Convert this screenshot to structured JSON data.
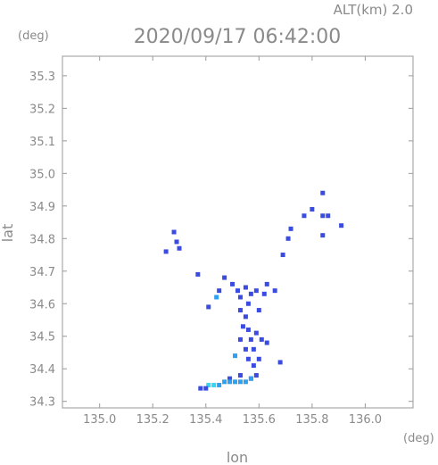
{
  "header": {
    "alt_label": "ALT(km)  2.0",
    "datetime": "2020/09/17 06:42:00"
  },
  "chart_data": {
    "type": "scatter",
    "title": "2020/09/17 06:42:00",
    "subtitle": "ALT(km)  2.0",
    "xlabel": "lon",
    "ylabel": "lat",
    "x_unit": "(deg)",
    "y_unit": "(deg)",
    "xlim": [
      134.86,
      136.18
    ],
    "ylim": [
      34.28,
      35.36
    ],
    "xticks": [
      135.0,
      135.2,
      135.4,
      135.6,
      135.8,
      136.0
    ],
    "xtick_labels": [
      "135.0",
      "135.2",
      "135.4",
      "135.6",
      "135.8",
      "136.0"
    ],
    "yticks": [
      34.3,
      34.4,
      34.5,
      34.6,
      34.7,
      34.8,
      34.9,
      35.0,
      35.1,
      35.2,
      35.3
    ],
    "ytick_labels": [
      "34.3",
      "34.4",
      "34.5",
      "34.6",
      "34.7",
      "34.8",
      "34.9",
      "35.0",
      "35.1",
      "35.2",
      "35.3"
    ],
    "grid": false,
    "colors": {
      "weak": "#3a4ce0",
      "moderate": "#2f9ff0",
      "strong": "#37d6f2"
    },
    "points": [
      {
        "x": 135.28,
        "y": 34.82,
        "level": "weak"
      },
      {
        "x": 135.29,
        "y": 34.79,
        "level": "weak"
      },
      {
        "x": 135.25,
        "y": 34.76,
        "level": "weak"
      },
      {
        "x": 135.3,
        "y": 34.77,
        "level": "weak"
      },
      {
        "x": 135.45,
        "y": 34.64,
        "level": "weak"
      },
      {
        "x": 135.44,
        "y": 34.62,
        "level": "moderate"
      },
      {
        "x": 135.37,
        "y": 34.69,
        "level": "weak"
      },
      {
        "x": 135.47,
        "y": 34.68,
        "level": "weak"
      },
      {
        "x": 135.41,
        "y": 34.59,
        "level": "weak"
      },
      {
        "x": 135.5,
        "y": 34.66,
        "level": "weak"
      },
      {
        "x": 135.52,
        "y": 34.64,
        "level": "weak"
      },
      {
        "x": 135.55,
        "y": 34.65,
        "level": "weak"
      },
      {
        "x": 135.53,
        "y": 34.62,
        "level": "weak"
      },
      {
        "x": 135.56,
        "y": 34.6,
        "level": "weak"
      },
      {
        "x": 135.53,
        "y": 34.58,
        "level": "weak"
      },
      {
        "x": 135.55,
        "y": 34.56,
        "level": "weak"
      },
      {
        "x": 135.57,
        "y": 34.63,
        "level": "weak"
      },
      {
        "x": 135.59,
        "y": 34.64,
        "level": "weak"
      },
      {
        "x": 135.62,
        "y": 34.63,
        "level": "weak"
      },
      {
        "x": 135.6,
        "y": 34.58,
        "level": "weak"
      },
      {
        "x": 135.63,
        "y": 34.66,
        "level": "weak"
      },
      {
        "x": 135.66,
        "y": 34.64,
        "level": "weak"
      },
      {
        "x": 135.54,
        "y": 34.53,
        "level": "weak"
      },
      {
        "x": 135.56,
        "y": 34.52,
        "level": "weak"
      },
      {
        "x": 135.53,
        "y": 34.49,
        "level": "weak"
      },
      {
        "x": 135.57,
        "y": 34.49,
        "level": "weak"
      },
      {
        "x": 135.59,
        "y": 34.51,
        "level": "weak"
      },
      {
        "x": 135.61,
        "y": 34.49,
        "level": "weak"
      },
      {
        "x": 135.63,
        "y": 34.48,
        "level": "weak"
      },
      {
        "x": 135.55,
        "y": 34.46,
        "level": "weak"
      },
      {
        "x": 135.58,
        "y": 34.46,
        "level": "weak"
      },
      {
        "x": 135.56,
        "y": 34.43,
        "level": "weak"
      },
      {
        "x": 135.58,
        "y": 34.41,
        "level": "weak"
      },
      {
        "x": 135.6,
        "y": 34.43,
        "level": "weak"
      },
      {
        "x": 135.68,
        "y": 34.42,
        "level": "weak"
      },
      {
        "x": 135.51,
        "y": 34.44,
        "level": "moderate"
      },
      {
        "x": 135.53,
        "y": 34.38,
        "level": "weak"
      },
      {
        "x": 135.49,
        "y": 34.37,
        "level": "weak"
      },
      {
        "x": 135.57,
        "y": 34.37,
        "level": "weak"
      },
      {
        "x": 135.59,
        "y": 34.38,
        "level": "weak"
      },
      {
        "x": 135.41,
        "y": 34.35,
        "level": "strong"
      },
      {
        "x": 135.43,
        "y": 34.35,
        "level": "strong"
      },
      {
        "x": 135.45,
        "y": 34.35,
        "level": "moderate"
      },
      {
        "x": 135.47,
        "y": 34.36,
        "level": "moderate"
      },
      {
        "x": 135.49,
        "y": 34.36,
        "level": "moderate"
      },
      {
        "x": 135.51,
        "y": 34.36,
        "level": "moderate"
      },
      {
        "x": 135.53,
        "y": 34.36,
        "level": "moderate"
      },
      {
        "x": 135.55,
        "y": 34.36,
        "level": "moderate"
      },
      {
        "x": 135.57,
        "y": 34.37,
        "level": "moderate"
      },
      {
        "x": 135.38,
        "y": 34.34,
        "level": "weak"
      },
      {
        "x": 135.4,
        "y": 34.34,
        "level": "weak"
      },
      {
        "x": 135.77,
        "y": 34.87,
        "level": "weak"
      },
      {
        "x": 135.8,
        "y": 34.89,
        "level": "weak"
      },
      {
        "x": 135.84,
        "y": 34.87,
        "level": "weak"
      },
      {
        "x": 135.84,
        "y": 34.94,
        "level": "weak"
      },
      {
        "x": 135.86,
        "y": 34.87,
        "level": "weak"
      },
      {
        "x": 135.91,
        "y": 34.84,
        "level": "weak"
      },
      {
        "x": 135.84,
        "y": 34.81,
        "level": "weak"
      },
      {
        "x": 135.72,
        "y": 34.83,
        "level": "weak"
      },
      {
        "x": 135.71,
        "y": 34.8,
        "level": "weak"
      },
      {
        "x": 135.69,
        "y": 34.75,
        "level": "weak"
      }
    ]
  }
}
